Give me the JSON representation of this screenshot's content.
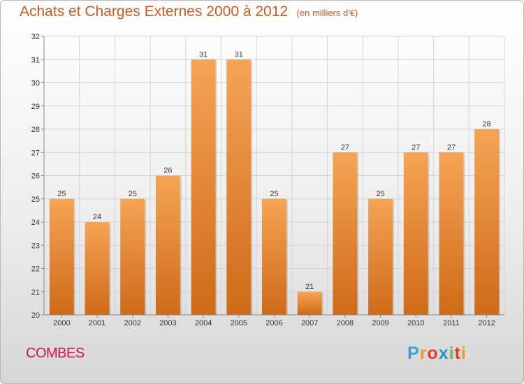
{
  "title": "Achats et Charges Externes 2000 à 2012",
  "subtitle": "(en milliers d'€)",
  "commune": "COMBES",
  "logo": {
    "letters": [
      "P",
      "r",
      "o",
      "x",
      "i",
      "t",
      "i"
    ],
    "colors": [
      "#3aa0d8",
      "#f29a1e",
      "#e8332a",
      "#2f8fd0",
      "#74b843",
      "#e8332a",
      "#f29a1e"
    ]
  },
  "chart_data": {
    "type": "bar",
    "title": "Achats et Charges Externes 2000 à 2012",
    "subtitle": "(en milliers d'€)",
    "categories": [
      "2000",
      "2001",
      "2002",
      "2003",
      "2004",
      "2005",
      "2006",
      "2007",
      "2008",
      "2009",
      "2010",
      "2011",
      "2012"
    ],
    "values": [
      25,
      24,
      25,
      26,
      31,
      31,
      25,
      21,
      27,
      25,
      27,
      27,
      28
    ],
    "ylim": [
      20,
      32
    ],
    "yticks": [
      20,
      21,
      22,
      23,
      24,
      25,
      26,
      27,
      28,
      29,
      30,
      31,
      32
    ],
    "grid": true,
    "legend": "none",
    "bar_color_top": "#f5a455",
    "bar_color_bottom": "#cf6a18"
  }
}
